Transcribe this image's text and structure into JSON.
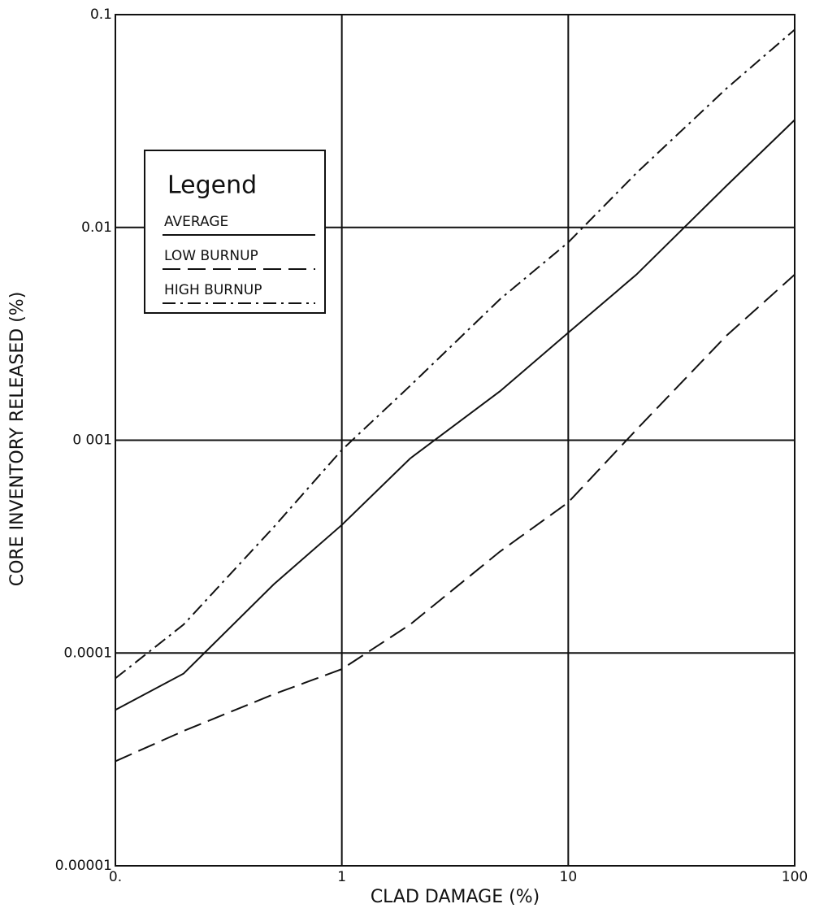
{
  "chart_data": {
    "type": "line",
    "x_label": "CLAD DAMAGE (%)",
    "y_label": "CORE INVENTORY RELEASED (%)",
    "legend_title": "Legend",
    "legend_position": "upper left",
    "log_x": true,
    "log_y": true,
    "grid": true,
    "xlim": [
      0.1,
      100
    ],
    "xticks": [
      {
        "value": 0.1,
        "label": "0."
      },
      1,
      10,
      100
    ],
    "ylim": [
      1e-05,
      0.1
    ],
    "yticks": [
      1e-05,
      0.0001,
      {
        "value": 0.001,
        "label": "0 001"
      },
      0.01,
      0.1
    ],
    "x": [
      0.1,
      0.2,
      0.5,
      1,
      2,
      5,
      10,
      20,
      50,
      100
    ],
    "series": [
      {
        "name": "AVERAGE",
        "color": "#111111",
        "dash": "solid",
        "values": [
          5.4e-05,
          8e-05,
          0.00021,
          0.0004,
          0.00082,
          0.0017,
          0.0032,
          0.006,
          0.0157,
          0.032
        ]
      },
      {
        "name": "LOW BURNUP",
        "color": "#111111",
        "dash": "dashed",
        "values": [
          3.1e-05,
          4.3e-05,
          6.4e-05,
          8.4e-05,
          0.000136,
          0.0003,
          0.00051,
          0.00112,
          0.0031,
          0.006
        ]
      },
      {
        "name": "HIGH BURNUP",
        "color": "#111111",
        "dash": "dashdot",
        "values": [
          7.6e-05,
          0.000136,
          0.00039,
          0.0009,
          0.0018,
          0.0046,
          0.0085,
          0.018,
          0.045,
          0.085
        ]
      }
    ]
  }
}
